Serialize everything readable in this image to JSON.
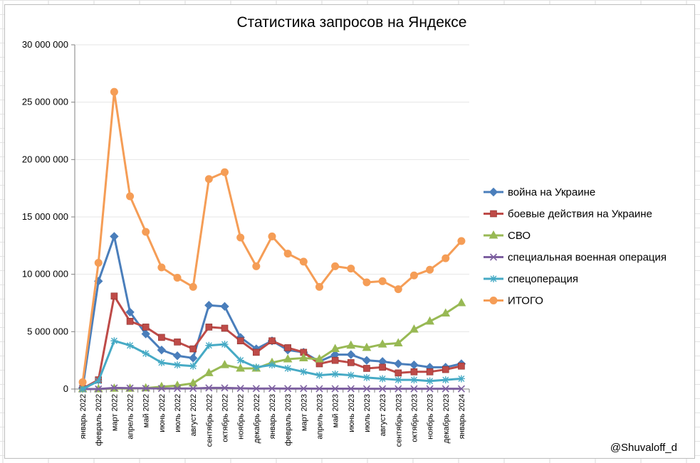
{
  "chart_data": {
    "type": "line",
    "title": "Статистика запросов на Яндексе",
    "xlabel": "",
    "ylabel": "",
    "ylim": [
      0,
      30000000
    ],
    "yticks": [
      0,
      5000000,
      10000000,
      15000000,
      20000000,
      25000000,
      30000000
    ],
    "ytick_labels": [
      "0",
      "5 000 000",
      "10 000 000",
      "15 000 000",
      "20 000 000",
      "25 000 000",
      "30 000 000"
    ],
    "legend_position": "right",
    "categories": [
      "январь 2022",
      "февраль 2022",
      "март 2022",
      "апрель 2022",
      "май 2022",
      "июнь 2022",
      "июль 2022",
      "август 2022",
      "сентябрь 2022",
      "октябрь 2022",
      "ноябрь 2022",
      "декабрь 2022",
      "январь 2023",
      "февраль 2023",
      "март 2023",
      "апрель 2023",
      "май 2023",
      "июнь 2023",
      "июль 2023",
      "август 2023",
      "сентябрь 2023",
      "октябрь 2023",
      "ноябрь 2023",
      "декабрь 2023",
      "январь 2024"
    ],
    "series": [
      {
        "name": "война на Украине",
        "color": "#4a7ebb",
        "marker": "diamond",
        "values": [
          100000,
          9400000,
          13300000,
          6700000,
          4800000,
          3400000,
          2900000,
          2700000,
          7300000,
          7200000,
          4500000,
          3500000,
          4200000,
          3400000,
          3200000,
          2400000,
          3000000,
          3000000,
          2500000,
          2400000,
          2200000,
          2100000,
          1900000,
          1900000,
          2200000
        ]
      },
      {
        "name": "боевые действия на Украине",
        "color": "#be4b48",
        "marker": "square",
        "values": [
          50000,
          800000,
          8100000,
          5900000,
          5400000,
          4500000,
          4100000,
          3500000,
          5400000,
          5300000,
          4200000,
          3200000,
          4200000,
          3600000,
          3200000,
          2200000,
          2500000,
          2300000,
          1800000,
          1900000,
          1400000,
          1500000,
          1500000,
          1700000,
          2000000
        ]
      },
      {
        "name": "СВО",
        "color": "#98b954",
        "marker": "triangle",
        "values": [
          0,
          0,
          50000,
          50000,
          80000,
          200000,
          300000,
          500000,
          1400000,
          2100000,
          1800000,
          1800000,
          2300000,
          2600000,
          2700000,
          2600000,
          3500000,
          3800000,
          3600000,
          3900000,
          4000000,
          5200000,
          5900000,
          6600000,
          7500000
        ]
      },
      {
        "name": "специальная военная операция",
        "color": "#7d60a0",
        "marker": "x",
        "values": [
          0,
          0,
          100000,
          80000,
          60000,
          50000,
          50000,
          50000,
          100000,
          100000,
          60000,
          40000,
          50000,
          40000,
          40000,
          30000,
          30000,
          30000,
          20000,
          20000,
          20000,
          20000,
          20000,
          20000,
          20000
        ]
      },
      {
        "name": "спецоперация",
        "color": "#46aac5",
        "marker": "star",
        "values": [
          0,
          700000,
          4200000,
          3800000,
          3100000,
          2300000,
          2100000,
          2000000,
          3800000,
          3900000,
          2500000,
          1900000,
          2100000,
          1800000,
          1500000,
          1200000,
          1300000,
          1200000,
          1000000,
          900000,
          800000,
          800000,
          700000,
          800000,
          900000
        ]
      },
      {
        "name": "ИТОГО",
        "color": "#f59d56",
        "marker": "circle",
        "values": [
          600000,
          11000000,
          25900000,
          16800000,
          13700000,
          10600000,
          9700000,
          8900000,
          18300000,
          18900000,
          13200000,
          10700000,
          13300000,
          11800000,
          11100000,
          8900000,
          10700000,
          10500000,
          9300000,
          9400000,
          8700000,
          9900000,
          10400000,
          11400000,
          12900000
        ]
      }
    ],
    "annotation": "@Shuvaloff_d"
  }
}
